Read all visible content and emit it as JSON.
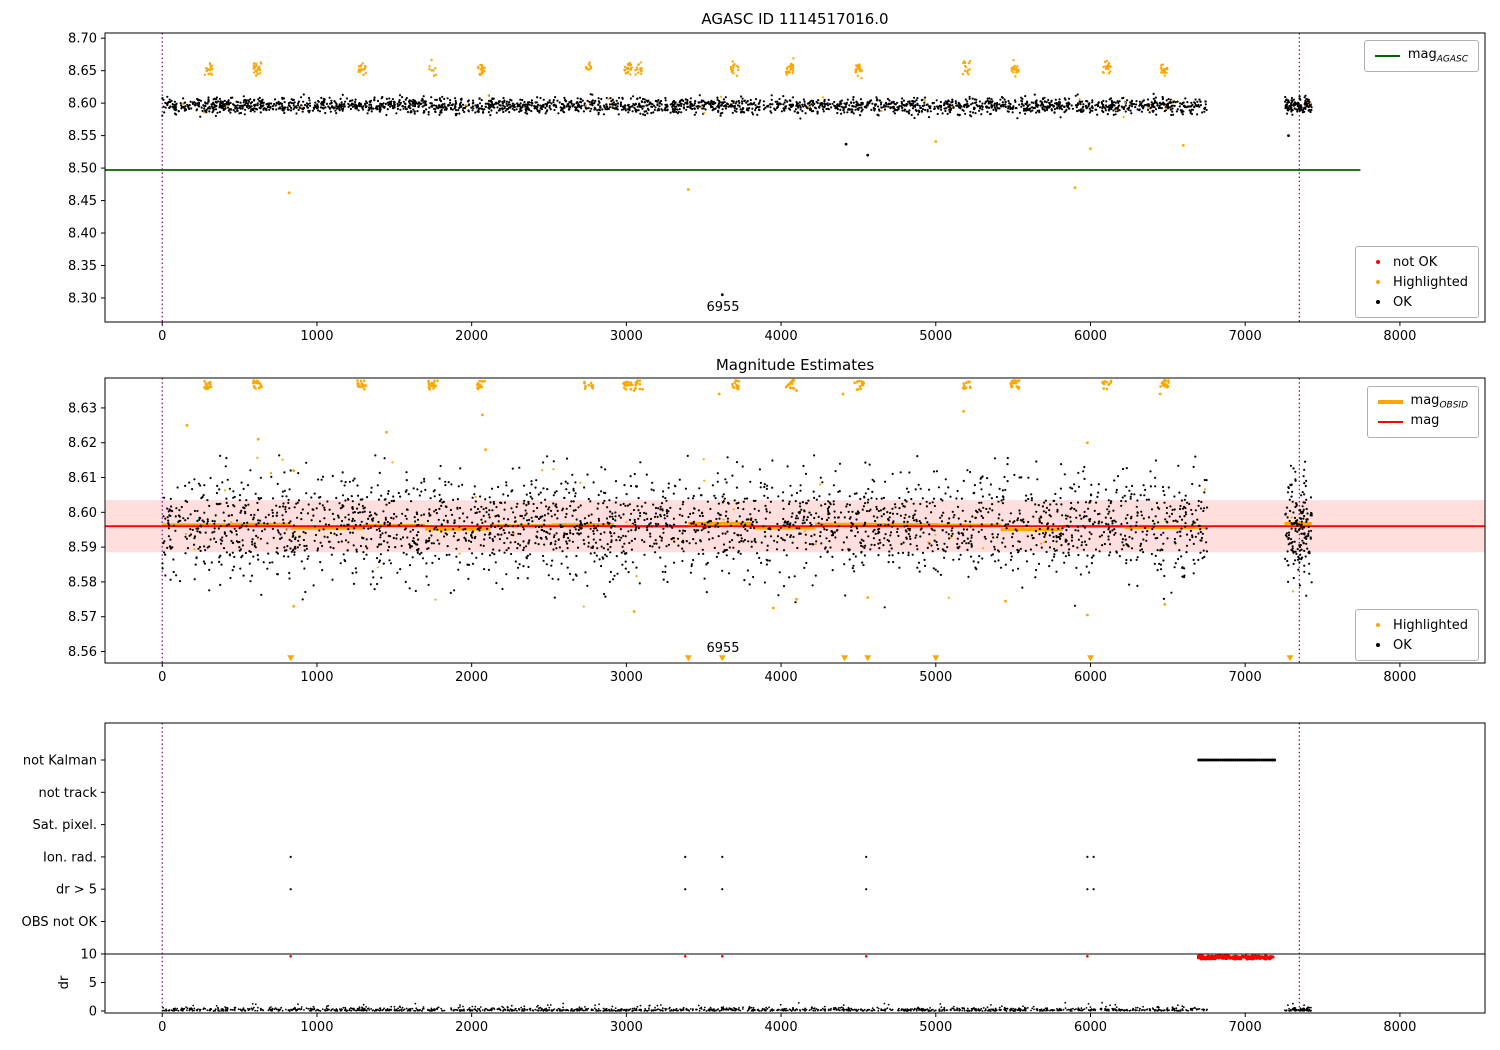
{
  "colors": {
    "ok": "#000000",
    "highlighted": "#ffa500",
    "not_ok": "#ff0000",
    "mag_agasc": "#006400",
    "mag": "#ff0000",
    "mag_obsid": "#ffa500",
    "band_fill": "rgba(255,0,0,0.13)",
    "vline": "#800080",
    "spine": "#000000"
  },
  "chart_data": [
    {
      "type": "scatter",
      "title": "AGASC ID 1114517016.0",
      "xlim": [
        -370,
        8550
      ],
      "ylim": [
        8.263,
        8.708
      ],
      "xticks": [
        0,
        1000,
        2000,
        3000,
        4000,
        5000,
        6000,
        7000,
        8000
      ],
      "yticks": [
        8.3,
        8.35,
        8.4,
        8.45,
        8.5,
        8.55,
        8.6,
        8.65,
        8.7
      ],
      "vlines": [
        0,
        7350
      ],
      "mag_agasc": 8.497,
      "mag_agasc_span": [
        -368,
        7745
      ],
      "annotation": {
        "text": "6955",
        "x": 3620
      },
      "ok_cloud": {
        "n": 2600,
        "y_mean": 8.596,
        "y_std": 0.006,
        "y_clip": [
          8.573,
          8.618
        ],
        "x_ranges": [
          [
            0,
            6755
          ],
          [
            7255,
            7430
          ]
        ],
        "weights": [
          0.95,
          0.05
        ]
      },
      "highlighted_sprinkle": {
        "n": 25,
        "y_mean": 8.596,
        "y_std": 0.009,
        "y_clip": [
          8.578,
          8.615
        ]
      },
      "highlight_clusters": {
        "x": [
          300,
          615,
          1290,
          1750,
          2065,
          2755,
          3010,
          3080,
          3700,
          4055,
          4505,
          5200,
          5510,
          6105,
          6480
        ],
        "n_each": [
          16,
          22,
          18,
          8,
          20,
          10,
          24,
          14,
          18,
          22,
          20,
          14,
          18,
          24,
          16
        ],
        "y_mean": 8.653,
        "y_std": 0.0055,
        "y_clip": [
          8.637,
          8.669
        ]
      },
      "highlighted_outliers": [
        [
          820,
          8.462
        ],
        [
          3400,
          8.467
        ],
        [
          5000,
          8.541
        ],
        [
          5900,
          8.47
        ],
        [
          6000,
          8.53
        ],
        [
          6600,
          8.535
        ]
      ],
      "ok_outliers": [
        [
          4420,
          8.537
        ],
        [
          4560,
          8.52
        ],
        [
          3620,
          8.305
        ],
        [
          7280,
          8.55
        ]
      ],
      "legend_line": {
        "main": "mag",
        "sub": "AGASC"
      },
      "legend_markers": [
        {
          "label": "not OK",
          "color_key": "not_ok"
        },
        {
          "label": "Highlighted",
          "color_key": "highlighted"
        },
        {
          "label": "OK",
          "color_key": "ok"
        }
      ]
    },
    {
      "type": "scatter",
      "title": "Magnitude Estimates",
      "xlim": [
        -370,
        8550
      ],
      "ylim": [
        8.5567,
        8.6386
      ],
      "xticks": [
        0,
        1000,
        2000,
        3000,
        4000,
        5000,
        6000,
        7000,
        8000
      ],
      "yticks": [
        8.56,
        8.57,
        8.58,
        8.59,
        8.6,
        8.61,
        8.62,
        8.63
      ],
      "vlines": [
        0,
        7350
      ],
      "mag": 8.596,
      "band": [
        8.5885,
        8.6035
      ],
      "obsid_segments": [
        [
          0,
          450
        ],
        [
          450,
          830
        ],
        [
          830,
          1300
        ],
        [
          1300,
          1700
        ],
        [
          1700,
          2120
        ],
        [
          2120,
          2520
        ],
        [
          2520,
          2920
        ],
        [
          2920,
          3400
        ],
        [
          3400,
          3820
        ],
        [
          3820,
          4220
        ],
        [
          4220,
          4620
        ],
        [
          4620,
          5020
        ],
        [
          5020,
          5420
        ],
        [
          5420,
          5820
        ],
        [
          5820,
          6220
        ],
        [
          6220,
          6755
        ],
        [
          7255,
          7430
        ]
      ],
      "annotation": {
        "text": "6955",
        "x": 3620
      },
      "ok_cloud": {
        "n": 2800,
        "y_mean": 8.5962,
        "y_std": 0.0075,
        "y_clip": [
          8.567,
          8.6165
        ],
        "x_ranges": [
          [
            0,
            6755
          ],
          [
            7255,
            7430
          ]
        ],
        "weights": [
          0.95,
          0.05
        ]
      },
      "highlighted_sprinkle": {
        "n": 40,
        "y_mean": 8.596,
        "y_std": 0.01,
        "y_clip": [
          8.57,
          8.616
        ]
      },
      "top_clusters": {
        "x": [
          300,
          615,
          1290,
          1750,
          2065,
          2755,
          3010,
          3080,
          3700,
          4055,
          4505,
          5200,
          5510,
          6105,
          6480
        ],
        "y_range": [
          8.6353,
          8.638
        ]
      },
      "highlighted_mid": [
        [
          160,
          8.625
        ],
        [
          620,
          8.621
        ],
        [
          850,
          8.612
        ],
        [
          1450,
          8.623
        ],
        [
          2070,
          8.628
        ],
        [
          2090,
          8.618
        ],
        [
          3050,
          8.635
        ],
        [
          3600,
          8.634
        ],
        [
          4100,
          8.635
        ],
        [
          4400,
          8.634
        ],
        [
          5180,
          8.629
        ],
        [
          5980,
          8.62
        ],
        [
          6450,
          8.634
        ]
      ],
      "highlighted_low": [
        [
          850,
          8.573
        ],
        [
          3050,
          8.5715
        ],
        [
          3950,
          8.5725
        ],
        [
          4100,
          8.575
        ],
        [
          4560,
          8.5755
        ],
        [
          5450,
          8.5745
        ],
        [
          5980,
          8.5705
        ],
        [
          6480,
          8.5735
        ]
      ],
      "bottom_triangles_x": [
        830,
        3400,
        3620,
        4410,
        4560,
        5000,
        6000,
        7290
      ],
      "legend_lines": [
        {
          "main": "mag",
          "sub": "OBSID",
          "color_key": "mag_obsid"
        },
        {
          "main": "mag",
          "sub": "",
          "color_key": "mag"
        }
      ],
      "legend_markers": [
        {
          "label": "Highlighted",
          "color_key": "highlighted"
        },
        {
          "label": "OK",
          "color_key": "ok"
        }
      ]
    },
    {
      "type": "flags-and-dr",
      "categories": [
        "not Kalman",
        "not track",
        "Sat. pixel.",
        "Ion. rad.",
        "dr > 5",
        "OBS not OK"
      ],
      "dr_label": "dr",
      "dr_ticks": [
        0,
        5,
        10
      ],
      "xticks": [
        0,
        1000,
        2000,
        3000,
        4000,
        5000,
        6000,
        7000,
        8000
      ],
      "xlim": [
        -370,
        8550
      ],
      "vlines": [
        0,
        7350
      ],
      "hline_dr": 10,
      "flag_events": {
        "not Kalman": {
          "range": [
            6700,
            7195
          ]
        },
        "Ion. rad.": {
          "x": [
            830,
            3380,
            3620,
            4550,
            5980,
            6020
          ]
        },
        "dr > 5": {
          "x": [
            830,
            3380,
            3620,
            4550,
            5980,
            6020
          ]
        }
      },
      "dr_not_ok": {
        "dense_range": [
          6695,
          7185
        ],
        "dense_value": 9.4,
        "singles_x": [
          830,
          3380,
          3620,
          4550,
          5980
        ],
        "singles_value": 9.6
      },
      "dr_cloud": {
        "n": 1500,
        "x_ranges": [
          [
            0,
            6755
          ],
          [
            7255,
            7430
          ]
        ],
        "weights": [
          0.95,
          0.05
        ],
        "scale": 0.28,
        "clip": [
          0,
          2.4
        ]
      }
    }
  ]
}
